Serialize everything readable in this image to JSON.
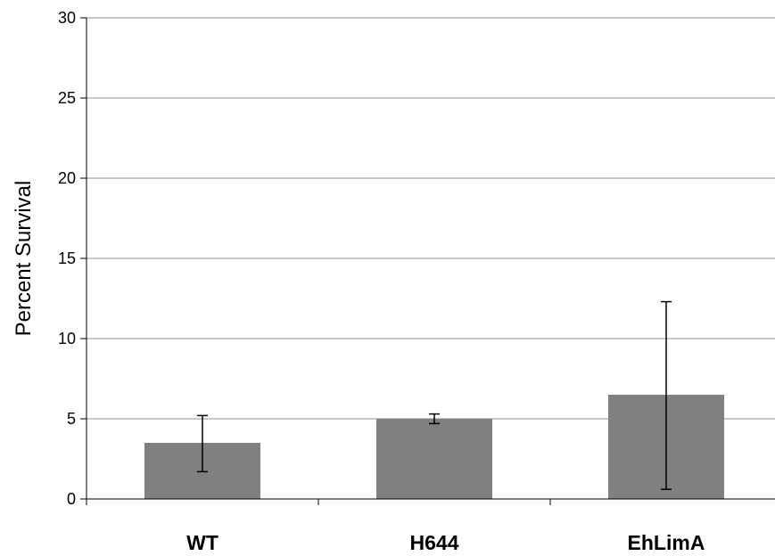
{
  "chart_data": {
    "type": "bar",
    "categories": [
      "WT",
      "H644",
      "EhLimA"
    ],
    "values": [
      3.5,
      5.0,
      6.5
    ],
    "error_low": [
      1.7,
      4.7,
      0.6
    ],
    "error_high": [
      5.2,
      5.3,
      12.3
    ],
    "ylabel": "Percent Survival",
    "xlabel": "",
    "ylim": [
      0,
      30
    ],
    "yticks": [
      "0",
      "5",
      "10",
      "15",
      "20",
      "25",
      "30"
    ],
    "grid": true,
    "bar_color": "#808080",
    "grid_color": "#a6a6a6"
  }
}
